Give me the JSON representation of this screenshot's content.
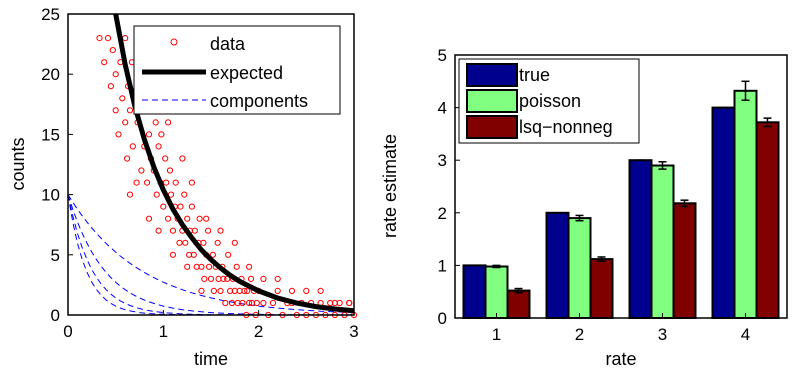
{
  "chart_data": [
    {
      "type": "scatter",
      "xlabel": "time",
      "ylabel": "counts",
      "xlim": [
        0,
        3
      ],
      "ylim": [
        0,
        25
      ],
      "xticks": [
        "0",
        "1",
        "2",
        "3"
      ],
      "yticks": [
        "0",
        "5",
        "10",
        "15",
        "20",
        "25"
      ],
      "grid": false,
      "legend_position": "top-right",
      "legend": [
        "data",
        "expected",
        "components"
      ],
      "colors": {
        "data": "#ff0000",
        "expected": "#000000",
        "components": "#0000ff"
      },
      "series": [
        {
          "name": "data",
          "style": "circle-markers",
          "points": [
            [
              0.33,
              23
            ],
            [
              0.38,
              21
            ],
            [
              0.42,
              23
            ],
            [
              0.45,
              19
            ],
            [
              0.47,
              22
            ],
            [
              0.5,
              17
            ],
            [
              0.5,
              20
            ],
            [
              0.53,
              15
            ],
            [
              0.55,
              21
            ],
            [
              0.57,
              18
            ],
            [
              0.6,
              23
            ],
            [
              0.6,
              16
            ],
            [
              0.62,
              13
            ],
            [
              0.63,
              19
            ],
            [
              0.65,
              17
            ],
            [
              0.67,
              21
            ],
            [
              0.68,
              14
            ],
            [
              0.7,
              18
            ],
            [
              0.72,
              22
            ],
            [
              0.73,
              16
            ],
            [
              0.75,
              19
            ],
            [
              0.77,
              12
            ],
            [
              0.78,
              17
            ],
            [
              0.8,
              14
            ],
            [
              0.82,
              20
            ],
            [
              0.83,
              11
            ],
            [
              0.85,
              15
            ],
            [
              0.87,
              13
            ],
            [
              0.88,
              18
            ],
            [
              0.9,
              12
            ],
            [
              0.92,
              16
            ],
            [
              0.93,
              10
            ],
            [
              0.95,
              14
            ],
            [
              0.97,
              11
            ],
            [
              0.98,
              15
            ],
            [
              1.0,
              9
            ],
            [
              1.02,
              13
            ],
            [
              1.03,
              11
            ],
            [
              1.05,
              8
            ],
            [
              1.07,
              12
            ],
            [
              1.08,
              10
            ],
            [
              1.1,
              7
            ],
            [
              1.12,
              9
            ],
            [
              1.13,
              11
            ],
            [
              1.15,
              8
            ],
            [
              1.17,
              6
            ],
            [
              1.18,
              9
            ],
            [
              1.2,
              7
            ],
            [
              1.22,
              10
            ],
            [
              1.23,
              6
            ],
            [
              1.25,
              8
            ],
            [
              1.27,
              5
            ],
            [
              1.28,
              7
            ],
            [
              1.3,
              9
            ],
            [
              1.32,
              5
            ],
            [
              1.33,
              7
            ],
            [
              1.35,
              4
            ],
            [
              1.37,
              6
            ],
            [
              1.38,
              8
            ],
            [
              1.4,
              4
            ],
            [
              1.42,
              6
            ],
            [
              1.43,
              3
            ],
            [
              1.45,
              5
            ],
            [
              1.47,
              7
            ],
            [
              1.48,
              4
            ],
            [
              1.5,
              3
            ],
            [
              1.52,
              5
            ],
            [
              1.53,
              2
            ],
            [
              1.55,
              4
            ],
            [
              1.57,
              6
            ],
            [
              1.58,
              3
            ],
            [
              1.6,
              2
            ],
            [
              1.62,
              4
            ],
            [
              1.63,
              3
            ],
            [
              1.65,
              1
            ],
            [
              1.67,
              3
            ],
            [
              1.68,
              5
            ],
            [
              1.7,
              2
            ],
            [
              1.72,
              1
            ],
            [
              1.73,
              3
            ],
            [
              1.75,
              2
            ],
            [
              1.77,
              4
            ],
            [
              1.78,
              1
            ],
            [
              1.8,
              2
            ],
            [
              1.82,
              3
            ],
            [
              1.83,
              1
            ],
            [
              1.85,
              2
            ],
            [
              1.87,
              0
            ],
            [
              1.88,
              2
            ],
            [
              1.9,
              1
            ],
            [
              1.92,
              3
            ],
            [
              1.93,
              1
            ],
            [
              1.95,
              2
            ],
            [
              1.97,
              0
            ],
            [
              1.98,
              1
            ],
            [
              2.0,
              2
            ],
            [
              2.05,
              1
            ],
            [
              2.1,
              0
            ],
            [
              2.15,
              1
            ],
            [
              2.2,
              2
            ],
            [
              2.25,
              0
            ],
            [
              2.3,
              1
            ],
            [
              2.35,
              1
            ],
            [
              2.4,
              0
            ],
            [
              2.45,
              1
            ],
            [
              2.5,
              0
            ],
            [
              2.55,
              1
            ],
            [
              2.6,
              0
            ],
            [
              2.65,
              1
            ],
            [
              2.7,
              0
            ],
            [
              2.75,
              1
            ],
            [
              2.8,
              0
            ],
            [
              2.85,
              1
            ],
            [
              2.9,
              0
            ],
            [
              2.95,
              1
            ],
            [
              3.0,
              0
            ],
            [
              0.9,
              21
            ],
            [
              1.05,
              16
            ],
            [
              1.2,
              13
            ],
            [
              1.3,
              11
            ],
            [
              1.45,
              8
            ],
            [
              1.6,
              7
            ],
            [
              1.75,
              6
            ],
            [
              1.9,
              4
            ],
            [
              2.05,
              3
            ],
            [
              2.2,
              3
            ],
            [
              2.35,
              2
            ],
            [
              2.5,
              2
            ],
            [
              2.65,
              2
            ],
            [
              2.8,
              1
            ],
            [
              2.95,
              1
            ],
            [
              0.65,
              10
            ],
            [
              0.72,
              11
            ],
            [
              0.85,
              8
            ],
            [
              0.95,
              7
            ],
            [
              1.1,
              5
            ],
            [
              1.25,
              4
            ],
            [
              1.4,
              2
            ]
          ]
        },
        {
          "name": "expected",
          "style": "thick-solid-line",
          "x": [
            0.5,
            0.6,
            0.7,
            0.8,
            0.9,
            1.0,
            1.1,
            1.2,
            1.3,
            1.4,
            1.5,
            1.6,
            1.7,
            1.8,
            1.9,
            2.0,
            2.2,
            2.4,
            2.6,
            2.8,
            3.0
          ],
          "y": [
            25.0,
            20.8,
            17.4,
            14.6,
            12.3,
            10.4,
            8.8,
            7.5,
            6.4,
            5.4,
            4.6,
            3.9,
            3.3,
            2.8,
            2.4,
            2.0,
            1.4,
            1.0,
            0.7,
            0.5,
            0.35
          ]
        },
        {
          "name": "components",
          "style": "dashed-lines",
          "amplitude": 10,
          "rates": [
            1,
            2,
            3,
            4
          ]
        }
      ]
    },
    {
      "type": "bar",
      "xlabel": "rate",
      "ylabel": "rate estimate",
      "ylim": [
        0,
        5
      ],
      "categories": [
        "1",
        "2",
        "3",
        "4"
      ],
      "yticks": [
        "0",
        "1",
        "2",
        "3",
        "4",
        "5"
      ],
      "grid": false,
      "legend_position": "top-left",
      "series": [
        {
          "name": "true",
          "color": "#00008f",
          "values": [
            1.0,
            2.0,
            3.0,
            4.0
          ],
          "errors": [
            0.0,
            0.0,
            0.0,
            0.0
          ]
        },
        {
          "name": "poisson",
          "color": "#80ff80",
          "values": [
            0.98,
            1.9,
            2.9,
            4.32
          ],
          "errors": [
            0.02,
            0.05,
            0.07,
            0.18
          ]
        },
        {
          "name": "lsq−nonneg",
          "color": "#800000",
          "values": [
            0.52,
            1.12,
            2.18,
            3.72
          ],
          "errors": [
            0.04,
            0.04,
            0.06,
            0.08
          ]
        }
      ]
    }
  ]
}
